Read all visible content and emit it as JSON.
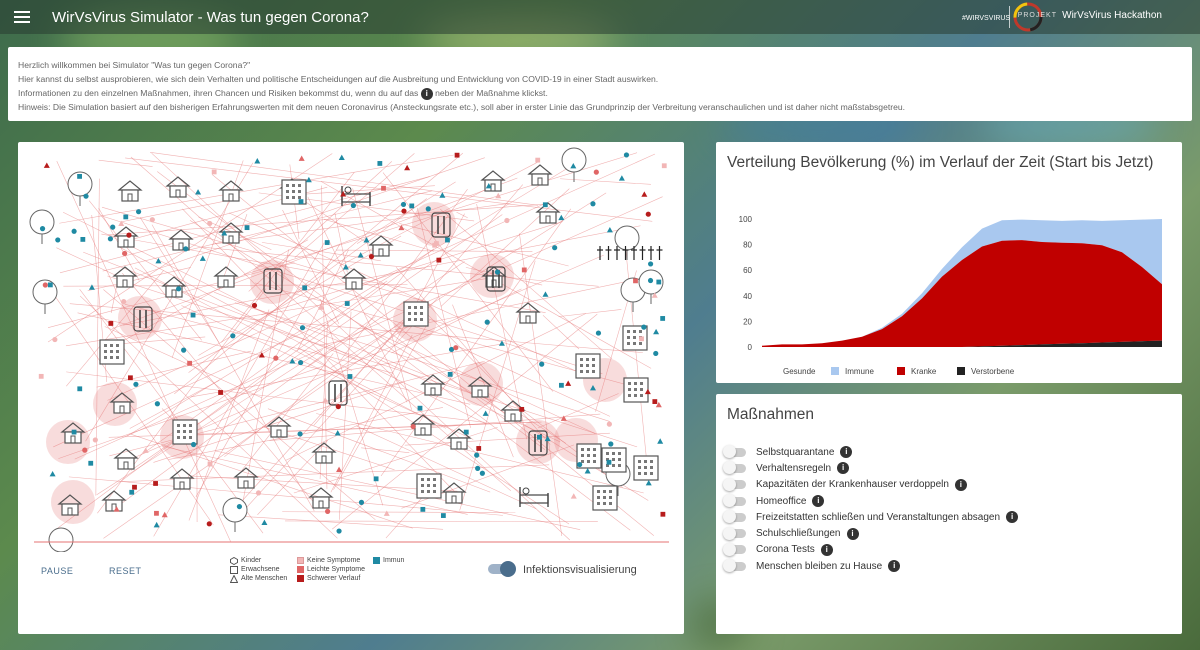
{
  "app": {
    "title": "WirVsVirus Simulator - Was tun gegen Corona?",
    "logo_text": "#WIRVSVIRUS",
    "logo_project": "PROJEKT",
    "hackathon": "WirVsVirus Hackathon"
  },
  "welcome": {
    "line1": "Herzlich willkommen bei Simulator \"Was tun gegen Corona?\"",
    "line2": "Hier kannst du selbst ausprobieren, wie sich dein Verhalten und politische Entscheidungen auf die Ausbreitung und Entwicklung von COVID-19 in einer Stadt auswirken.",
    "line3_pre": "Informationen zu den einzelnen Maßnahmen, ihren Chancen und Risiken bekommst du, wenn du auf das",
    "line3_icon": "i",
    "line3_post": "neben der Maßnahme klickst.",
    "line4": "Hinweis: Die Simulation basiert auf den bisherigen Erfahrungswerten mit dem neuen Coronavirus (Ansteckungsrate etc.), soll aber in erster Linie das Grundprinzip der Verbreitung veranschaulichen und ist daher nicht maßstabsgetreu."
  },
  "controls": {
    "pause": "PAUSE",
    "reset": "RESET",
    "toggle_label": "Infektionsvisualisierung",
    "toggle_on": true
  },
  "legend": {
    "shapes": [
      "Kinder",
      "Erwachsene",
      "Alte Menschen"
    ],
    "states": [
      "Keine Symptome",
      "Leichte Symptome",
      "Schwerer Verlauf"
    ],
    "immune": "Immun",
    "colors": {
      "no_symptoms": "#f2b6b6",
      "light_symptoms": "#e06666",
      "severe": "#b71c1c",
      "immune": "#1f8aa3"
    }
  },
  "chart_data": {
    "type": "area",
    "title": "Verteilung Bevölkerung (%) im Verlauf der Zeit (Start bis Jetzt)",
    "ylim": [
      0,
      100
    ],
    "yticks": [
      "100",
      "80",
      "60",
      "40",
      "20",
      "0"
    ],
    "legend_placement": "bottom",
    "series": [
      {
        "name": "Gesunde",
        "color": "#ffffff"
      },
      {
        "name": "Immune",
        "color": "#a9c8ef"
      },
      {
        "name": "Kranke",
        "color": "#c00000"
      },
      {
        "name": "Verstorbene",
        "color": "#222222"
      }
    ],
    "t": [
      0,
      5,
      10,
      15,
      20,
      25,
      30,
      35,
      40,
      45,
      50,
      55,
      60,
      65,
      70,
      75,
      80,
      85,
      90,
      95,
      100
    ],
    "verstorbene": [
      0,
      0,
      0,
      0,
      0,
      0,
      0,
      0,
      0,
      0,
      0,
      0.5,
      1,
      1.5,
      2,
      2.5,
      3,
      3.5,
      4,
      4.5,
      5
    ],
    "kranke": [
      1,
      2,
      2,
      3,
      5,
      8,
      14,
      24,
      38,
      55,
      68,
      78,
      82,
      82,
      80,
      79,
      78,
      76,
      70,
      58,
      44
    ],
    "immune": [
      0,
      0,
      0,
      0,
      0,
      0,
      1,
      2,
      4,
      6,
      10,
      14,
      16,
      16,
      17,
      17,
      18,
      19,
      25,
      37,
      51
    ]
  },
  "measures": {
    "title": "Maßnahmen",
    "info_icon": "i",
    "items": [
      {
        "label": "Selbstquarantane",
        "on": false
      },
      {
        "label": "Verhaltensregeln",
        "on": false
      },
      {
        "label": "Kapazitäten der Krankenhauser verdoppeln",
        "on": false
      },
      {
        "label": "Homeoffice",
        "on": false
      },
      {
        "label": "Freizeitstatten schließen und Veranstaltungen absagen",
        "on": false
      },
      {
        "label": "Schulschließungen",
        "on": false
      },
      {
        "label": "Corona Tests",
        "on": false
      },
      {
        "label": "Menschen bleiben zu Hause",
        "on": false
      }
    ]
  }
}
